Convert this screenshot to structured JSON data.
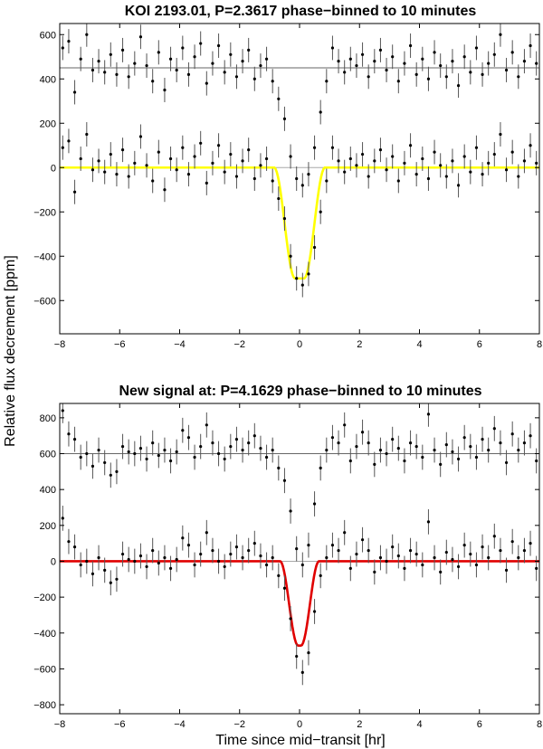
{
  "figure": {
    "ylabel": "Relative flux decrement [ppm]",
    "xlabel": "Time since mid−transit [hr]"
  },
  "chart_data": [
    {
      "type": "scatter",
      "title": "KOI 2193.01, P=2.3617 phase−binned to 10 minutes",
      "xlim": [
        -8,
        8
      ],
      "ylim": [
        -750,
        650
      ],
      "x_ticks": [
        -8,
        -6,
        -4,
        -2,
        0,
        2,
        4,
        6,
        8
      ],
      "y_ticks": [
        -600,
        -400,
        -200,
        0,
        200,
        400,
        600
      ],
      "reference_lines": [
        0,
        450
      ],
      "offset": 450,
      "errorbar": 55,
      "model": {
        "color": "#ffff00",
        "depth": -500,
        "t1": 0.85,
        "t2": 0.15
      },
      "data": [
        {
          "x": -7.9,
          "y": 90
        },
        {
          "x": -7.7,
          "y": 120
        },
        {
          "x": -7.5,
          "y": -110
        },
        {
          "x": -7.3,
          "y": 40
        },
        {
          "x": -7.1,
          "y": 150
        },
        {
          "x": -6.9,
          "y": -10
        },
        {
          "x": -6.7,
          "y": 30
        },
        {
          "x": -6.5,
          "y": -20
        },
        {
          "x": -6.3,
          "y": 60
        },
        {
          "x": -6.1,
          "y": -30
        },
        {
          "x": -5.9,
          "y": 80
        },
        {
          "x": -5.7,
          "y": -40
        },
        {
          "x": -5.5,
          "y": 20
        },
        {
          "x": -5.3,
          "y": 140
        },
        {
          "x": -5.1,
          "y": 10
        },
        {
          "x": -4.9,
          "y": -60
        },
        {
          "x": -4.7,
          "y": 70
        },
        {
          "x": -4.5,
          "y": -100
        },
        {
          "x": -4.3,
          "y": 40
        },
        {
          "x": -4.1,
          "y": -10
        },
        {
          "x": -3.9,
          "y": 90
        },
        {
          "x": -3.7,
          "y": -30
        },
        {
          "x": -3.5,
          "y": 50
        },
        {
          "x": -3.3,
          "y": 110
        },
        {
          "x": -3.1,
          "y": -70
        },
        {
          "x": -2.9,
          "y": 20
        },
        {
          "x": -2.7,
          "y": 100
        },
        {
          "x": -2.5,
          "y": -20
        },
        {
          "x": -2.3,
          "y": 60
        },
        {
          "x": -2.1,
          "y": -40
        },
        {
          "x": -1.9,
          "y": 30
        },
        {
          "x": -1.7,
          "y": 80
        },
        {
          "x": -1.5,
          "y": -50
        },
        {
          "x": -1.3,
          "y": 10
        },
        {
          "x": -1.1,
          "y": 40
        },
        {
          "x": -0.9,
          "y": -60
        },
        {
          "x": -0.7,
          "y": -140
        },
        {
          "x": -0.5,
          "y": -230
        },
        {
          "x": -0.3,
          "y": -400
        },
        {
          "x": -0.1,
          "y": -500
        },
        {
          "x": 0.1,
          "y": -530
        },
        {
          "x": 0.3,
          "y": -480
        },
        {
          "x": 0.5,
          "y": -360
        },
        {
          "x": 0.7,
          "y": -200
        },
        {
          "x": 0.9,
          "y": -60
        },
        {
          "x": 1.1,
          "y": 90
        },
        {
          "x": 1.3,
          "y": 30
        },
        {
          "x": 1.5,
          "y": -20
        },
        {
          "x": 1.7,
          "y": 40
        },
        {
          "x": 1.9,
          "y": 10
        },
        {
          "x": 2.1,
          "y": 60
        },
        {
          "x": 2.3,
          "y": -40
        },
        {
          "x": 2.5,
          "y": 30
        },
        {
          "x": 2.7,
          "y": 80
        },
        {
          "x": 2.9,
          "y": -10
        },
        {
          "x": 3.1,
          "y": 50
        },
        {
          "x": 3.3,
          "y": -60
        },
        {
          "x": 3.5,
          "y": 20
        },
        {
          "x": 3.7,
          "y": 100
        },
        {
          "x": 3.9,
          "y": -30
        },
        {
          "x": 4.1,
          "y": 40
        },
        {
          "x": 4.3,
          "y": -50
        },
        {
          "x": 4.5,
          "y": 70
        },
        {
          "x": 4.7,
          "y": 10
        },
        {
          "x": 4.9,
          "y": -40
        },
        {
          "x": 5.1,
          "y": 30
        },
        {
          "x": 5.3,
          "y": -80
        },
        {
          "x": 5.5,
          "y": 50
        },
        {
          "x": 5.7,
          "y": -20
        },
        {
          "x": 5.9,
          "y": 90
        },
        {
          "x": 6.1,
          "y": -30
        },
        {
          "x": 6.3,
          "y": 20
        },
        {
          "x": 6.5,
          "y": 60
        },
        {
          "x": 6.7,
          "y": 150
        },
        {
          "x": 6.9,
          "y": -10
        },
        {
          "x": 7.1,
          "y": 70
        },
        {
          "x": 7.3,
          "y": -40
        },
        {
          "x": 7.5,
          "y": 30
        },
        {
          "x": 7.7,
          "y": 100
        },
        {
          "x": 7.9,
          "y": 20
        }
      ]
    },
    {
      "type": "scatter",
      "title": "New signal at: P=4.1629 phase−binned to 10 minutes",
      "xlim": [
        -8,
        8
      ],
      "ylim": [
        -850,
        880
      ],
      "x_ticks": [
        -8,
        -6,
        -4,
        -2,
        0,
        2,
        4,
        6,
        8
      ],
      "y_ticks": [
        -800,
        -600,
        -400,
        -200,
        0,
        200,
        400,
        600,
        800
      ],
      "reference_lines": [
        0,
        600
      ],
      "offset": 600,
      "errorbar": 70,
      "model": {
        "color": "#e00000",
        "depth": -470,
        "t1": 0.65,
        "t2": 0.05
      },
      "data": [
        {
          "x": -7.9,
          "y": 240
        },
        {
          "x": -7.7,
          "y": 110
        },
        {
          "x": -7.5,
          "y": 80
        },
        {
          "x": -7.3,
          "y": -20
        },
        {
          "x": -7.1,
          "y": 0
        },
        {
          "x": -6.9,
          "y": -70
        },
        {
          "x": -6.7,
          "y": 20
        },
        {
          "x": -6.5,
          "y": -50
        },
        {
          "x": -6.3,
          "y": -120
        },
        {
          "x": -6.1,
          "y": -100
        },
        {
          "x": -5.9,
          "y": 40
        },
        {
          "x": -5.7,
          "y": 10
        },
        {
          "x": -5.5,
          "y": 0
        },
        {
          "x": -5.3,
          "y": 30
        },
        {
          "x": -5.1,
          "y": -30
        },
        {
          "x": -4.9,
          "y": 60
        },
        {
          "x": -4.7,
          "y": -10
        },
        {
          "x": -4.5,
          "y": 20
        },
        {
          "x": -4.3,
          "y": -40
        },
        {
          "x": -4.1,
          "y": 10
        },
        {
          "x": -3.9,
          "y": 130
        },
        {
          "x": -3.7,
          "y": 90
        },
        {
          "x": -3.5,
          "y": -20
        },
        {
          "x": -3.3,
          "y": 40
        },
        {
          "x": -3.1,
          "y": 160
        },
        {
          "x": -2.9,
          "y": 60
        },
        {
          "x": -2.7,
          "y": 0
        },
        {
          "x": -2.5,
          "y": -30
        },
        {
          "x": -2.3,
          "y": 40
        },
        {
          "x": -2.1,
          "y": 80
        },
        {
          "x": -1.9,
          "y": 20
        },
        {
          "x": -1.7,
          "y": 60
        },
        {
          "x": -1.5,
          "y": 100
        },
        {
          "x": -1.3,
          "y": 30
        },
        {
          "x": -1.1,
          "y": -20
        },
        {
          "x": -0.9,
          "y": 20
        },
        {
          "x": -0.7,
          "y": -80
        },
        {
          "x": -0.5,
          "y": -150
        },
        {
          "x": -0.3,
          "y": -320
        },
        {
          "x": -0.1,
          "y": -530
        },
        {
          "x": 0.1,
          "y": -620
        },
        {
          "x": 0.3,
          "y": -510
        },
        {
          "x": 0.5,
          "y": -280
        },
        {
          "x": 0.7,
          "y": -80
        },
        {
          "x": 0.9,
          "y": 20
        },
        {
          "x": 1.1,
          "y": 90
        },
        {
          "x": 1.3,
          "y": 60
        },
        {
          "x": 1.5,
          "y": 160
        },
        {
          "x": 1.7,
          "y": -40
        },
        {
          "x": 1.9,
          "y": 40
        },
        {
          "x": 2.1,
          "y": 120
        },
        {
          "x": 2.3,
          "y": 60
        },
        {
          "x": 2.5,
          "y": -60
        },
        {
          "x": 2.7,
          "y": 20
        },
        {
          "x": 2.9,
          "y": 0
        },
        {
          "x": 3.1,
          "y": 80
        },
        {
          "x": 3.3,
          "y": 30
        },
        {
          "x": 3.5,
          "y": -40
        },
        {
          "x": 3.7,
          "y": 60
        },
        {
          "x": 3.9,
          "y": 40
        },
        {
          "x": 4.1,
          "y": -20
        },
        {
          "x": 4.3,
          "y": 220
        },
        {
          "x": 4.5,
          "y": 20
        },
        {
          "x": 4.7,
          "y": -60
        },
        {
          "x": 4.9,
          "y": 50
        },
        {
          "x": 5.1,
          "y": 10
        },
        {
          "x": 5.3,
          "y": -30
        },
        {
          "x": 5.5,
          "y": 90
        },
        {
          "x": 5.7,
          "y": 40
        },
        {
          "x": 5.9,
          "y": -20
        },
        {
          "x": 6.1,
          "y": 80
        },
        {
          "x": 6.3,
          "y": 20
        },
        {
          "x": 6.5,
          "y": 140
        },
        {
          "x": 6.7,
          "y": 60
        },
        {
          "x": 6.9,
          "y": -50
        },
        {
          "x": 7.1,
          "y": 110
        },
        {
          "x": 7.3,
          "y": 20
        },
        {
          "x": 7.5,
          "y": 60
        },
        {
          "x": 7.7,
          "y": 100
        },
        {
          "x": 7.9,
          "y": -40
        }
      ]
    }
  ]
}
